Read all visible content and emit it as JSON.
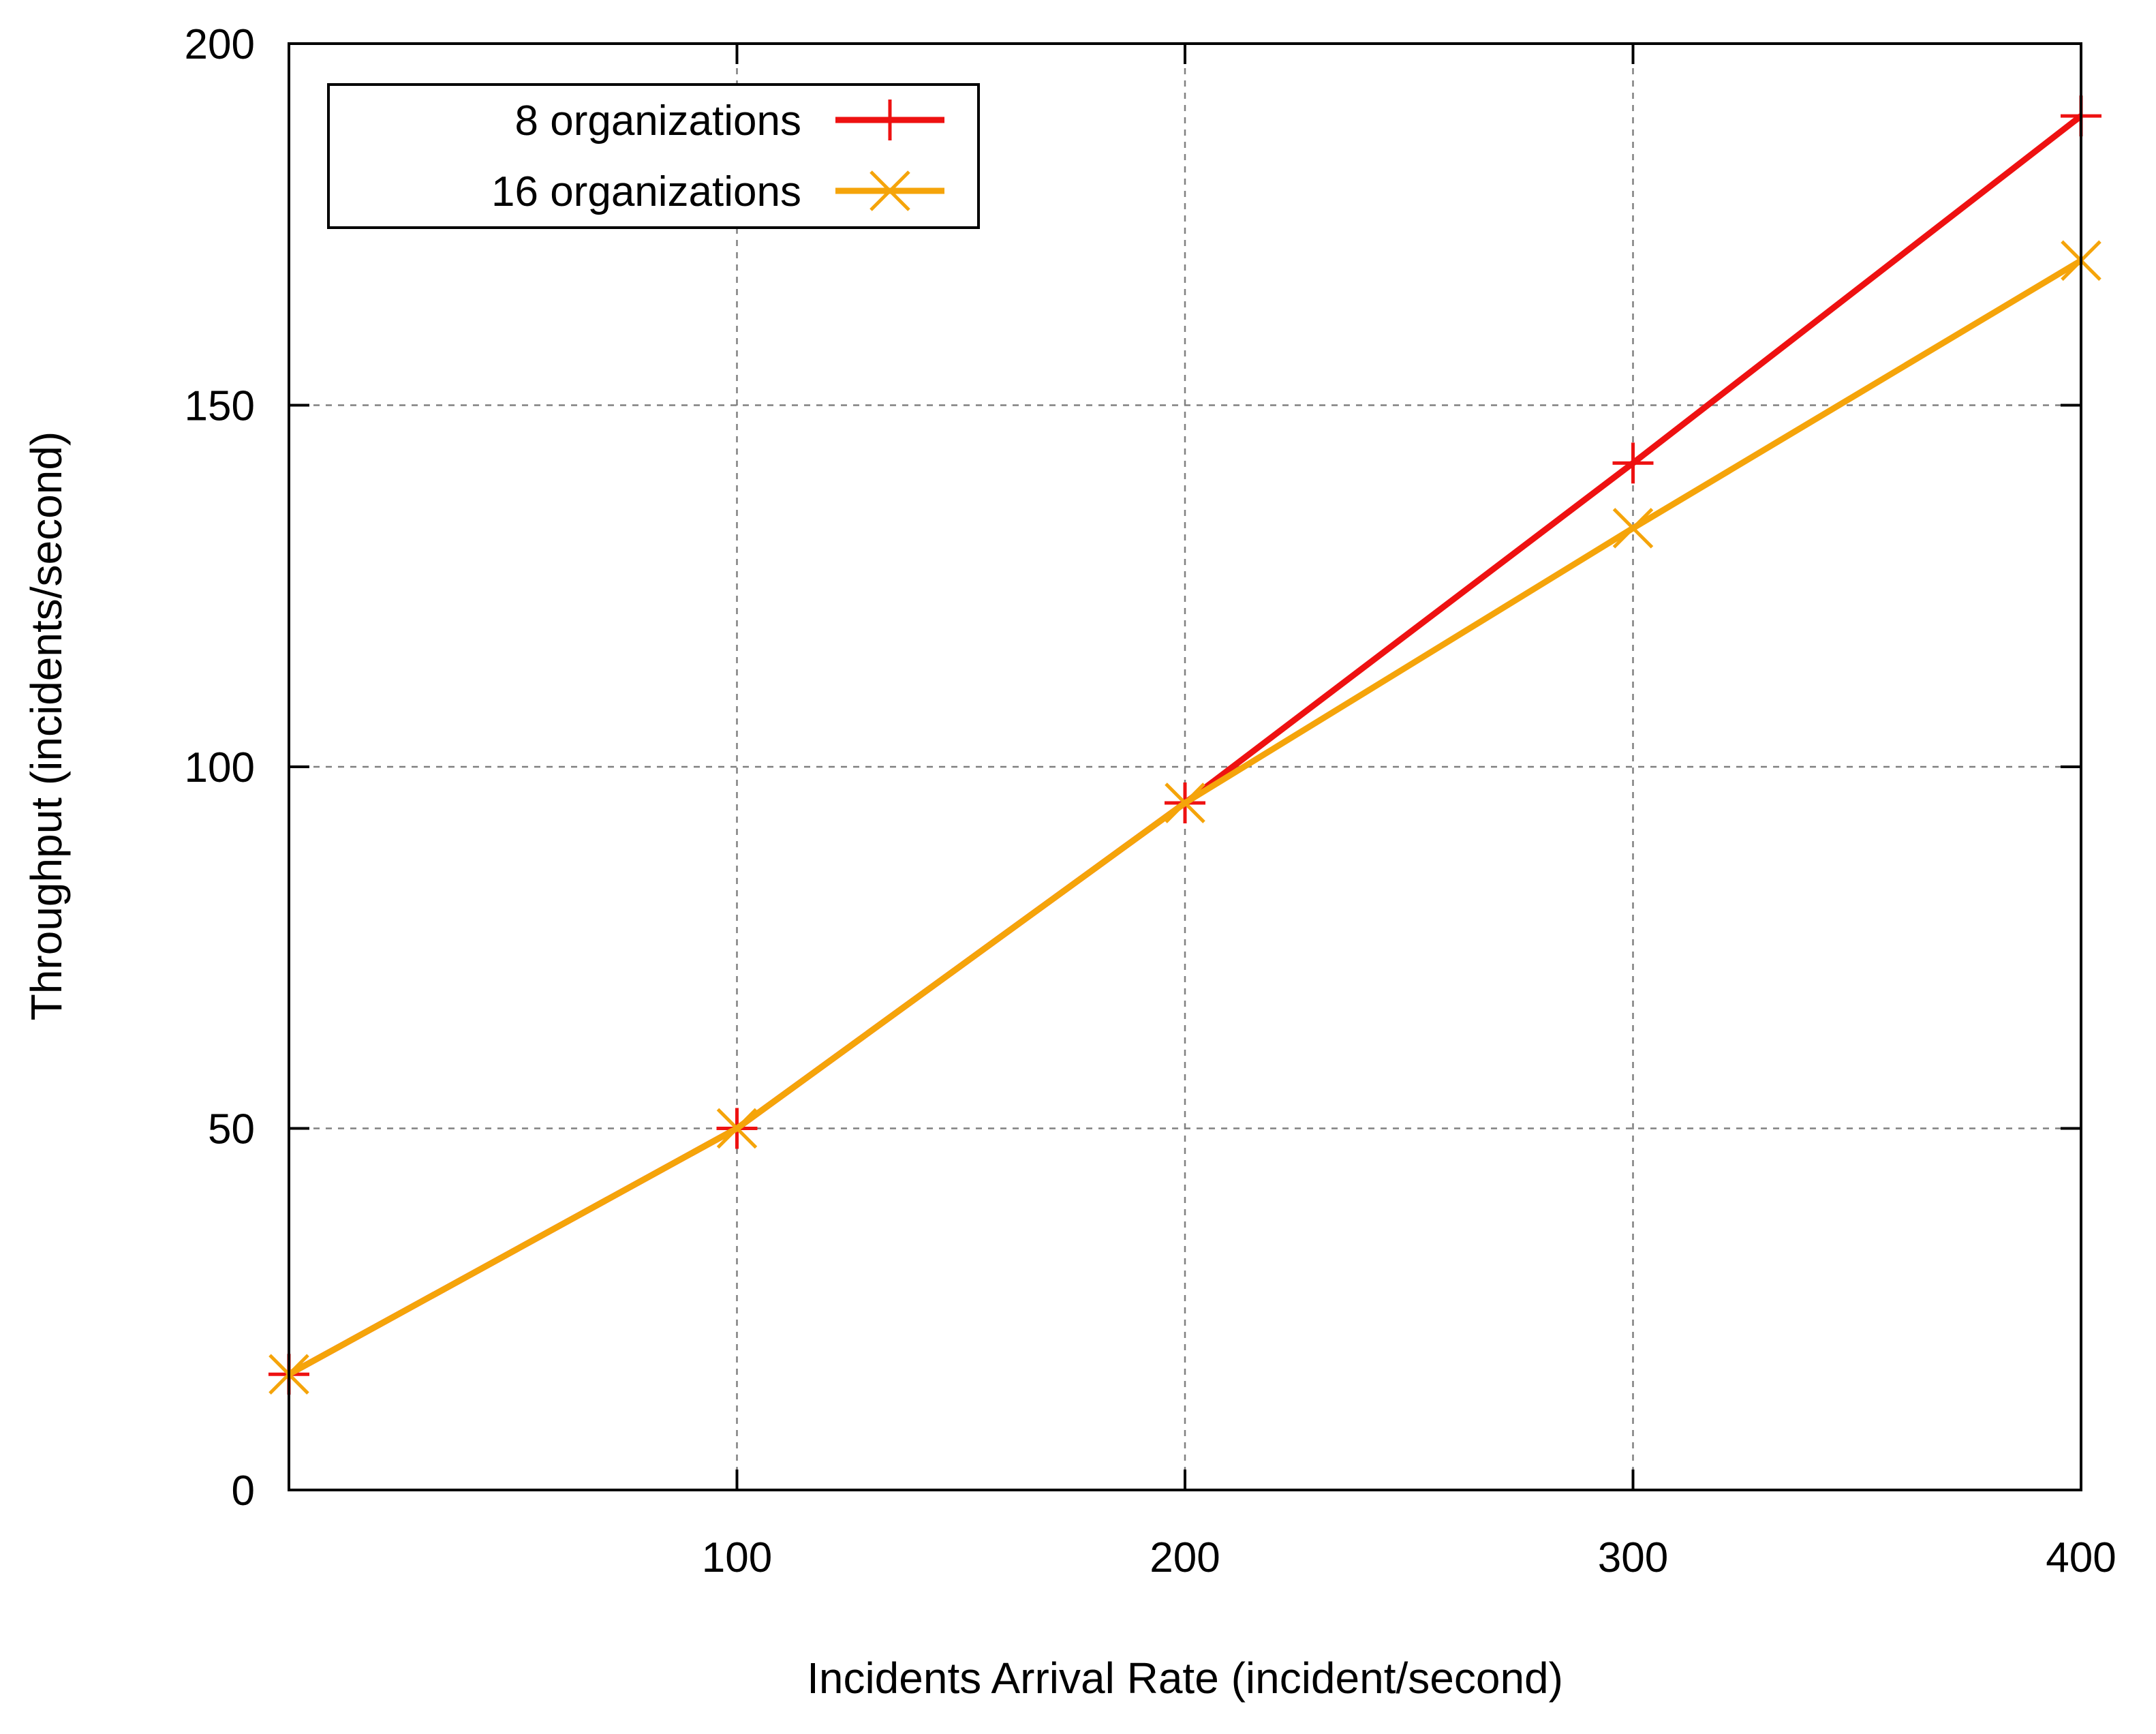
{
  "chart_data": {
    "type": "line",
    "xlabel": "Incidents Arrival Rate (incident/second)",
    "ylabel": "Throughput (incidents/second)",
    "xlim": [
      0,
      400
    ],
    "ylim": [
      0,
      200
    ],
    "x_ticks": [
      100,
      200,
      300,
      400
    ],
    "y_ticks": [
      0,
      50,
      100,
      150,
      200
    ],
    "x_tick_labels": [
      "100",
      "200",
      "300",
      "400"
    ],
    "y_tick_labels": [
      "0",
      "50",
      "100",
      "150",
      "200"
    ],
    "grid": true,
    "legend_position": "top-left",
    "series": [
      {
        "name": "8 organizations",
        "color": "#ee1111",
        "marker": "plus",
        "x": [
          0,
          100,
          200,
          300,
          400
        ],
        "y": [
          16,
          50,
          95,
          142,
          190
        ]
      },
      {
        "name": "16 organizations",
        "color": "#f5a40a",
        "marker": "cross",
        "x": [
          0,
          100,
          200,
          300,
          400
        ],
        "y": [
          16,
          50,
          95,
          133,
          170
        ]
      }
    ]
  }
}
